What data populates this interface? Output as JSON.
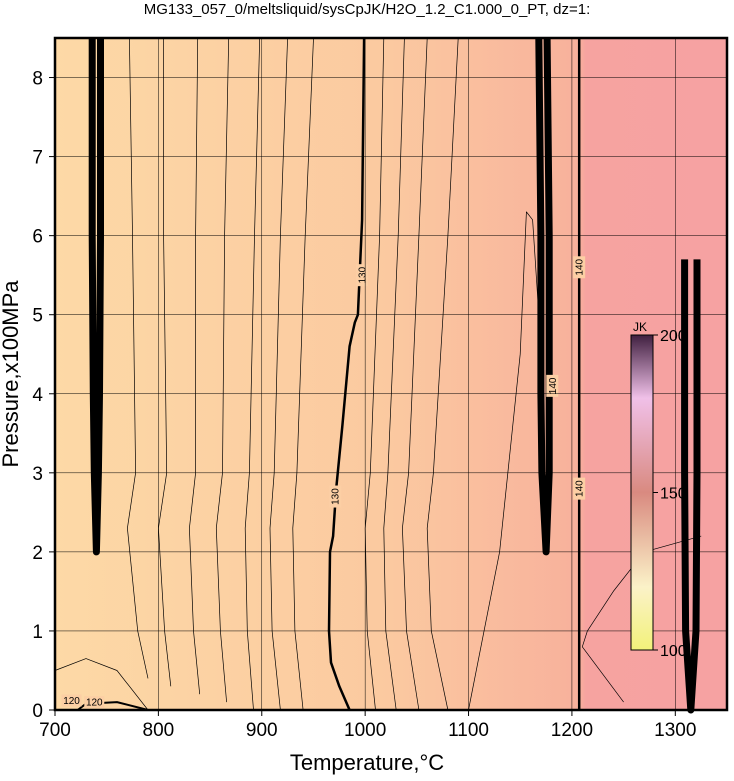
{
  "chart_data": {
    "type": "contour",
    "title": "MG133_057_0/meltsliquid/sysCpJK/H2O_1.2_C1.000_0_PT, dz=1:",
    "x_label": "Temperature,°C",
    "y_label": "Pressure,x100MPa",
    "xlim": [
      700,
      1350
    ],
    "ylim": [
      0,
      8.5
    ],
    "xticks": [
      700,
      800,
      900,
      1000,
      1100,
      1200,
      1300
    ],
    "yticks": [
      0,
      1,
      2,
      3,
      4,
      5,
      6,
      7,
      8
    ],
    "grid": true,
    "contours": [
      {
        "level": 130,
        "x": [
          999,
          997,
          995,
          993,
          990,
          985,
          978,
          972,
          969,
          966,
          965,
          967,
          975,
          985
        ],
        "y": [
          8.5,
          6.2,
          5.6,
          5.0,
          4.9,
          4.6,
          3.6,
          2.8,
          2.2,
          2.0,
          1.0,
          0.6,
          0.3,
          0
        ]
      },
      {
        "level": 140,
        "x": [
          1207,
          1207
        ],
        "y": [
          8.5,
          0
        ]
      },
      {
        "level": 120,
        "x": [
          722,
          730,
          760,
          790
        ],
        "y": [
          0,
          0.08,
          0.1,
          0
        ]
      }
    ],
    "contour_labels": [
      {
        "level": 130,
        "x": 997,
        "y": 5.5
      },
      {
        "level": 130,
        "x": 971,
        "y": 2.7
      },
      {
        "level": 140,
        "x": 1207,
        "y": 5.6
      },
      {
        "level": 140,
        "x": 1207,
        "y": 2.8
      },
      {
        "level": 140,
        "x": 1181,
        "y": 4.1
      },
      {
        "level": 120,
        "x": 716,
        "y": 0.12
      },
      {
        "level": 120,
        "x": 738,
        "y": 0.1
      }
    ],
    "boundaries": [
      {
        "x": [
          736,
          736,
          737,
          738,
          740,
          742,
          743,
          744,
          744
        ],
        "y": [
          8.5,
          6,
          4,
          3,
          2,
          3,
          4,
          6,
          8.5
        ]
      },
      {
        "x": [
          1168,
          1170,
          1170,
          1171,
          1175,
          1178,
          1178,
          1178,
          1176
        ],
        "y": [
          8.5,
          6,
          4,
          3,
          2,
          3,
          4,
          6,
          8.5
        ]
      },
      {
        "x": [
          1309,
          1309,
          1310,
          1315,
          1320,
          1321,
          1321
        ],
        "y": [
          5.7,
          3,
          1,
          0,
          1,
          3,
          5.7
        ]
      }
    ],
    "thin_contours": [
      {
        "x": [
          772,
          775,
          778,
          770,
          780,
          790
        ],
        "y": [
          8.5,
          6,
          3,
          2.3,
          1,
          0.4
        ]
      },
      {
        "x": [
          805,
          805,
          808,
          800,
          806,
          812
        ],
        "y": [
          8.5,
          6,
          3,
          2.3,
          1,
          0.3
        ]
      },
      {
        "x": [
          838,
          836,
          836,
          830,
          834,
          840
        ],
        "y": [
          8.5,
          6,
          3,
          2.3,
          1,
          0.2
        ]
      },
      {
        "x": [
          868,
          864,
          862,
          856,
          860,
          866
        ],
        "y": [
          8.5,
          6,
          3,
          2.3,
          1,
          0.1
        ]
      },
      {
        "x": [
          898,
          893,
          888,
          884,
          886,
          892
        ],
        "y": [
          8.5,
          6,
          3,
          2.3,
          1,
          0
        ]
      },
      {
        "x": [
          925,
          918,
          912,
          908,
          910,
          918
        ],
        "y": [
          8.5,
          6,
          3,
          2.3,
          1,
          0
        ]
      },
      {
        "x": [
          950,
          942,
          934,
          930,
          932,
          940
        ],
        "y": [
          8.5,
          6,
          3,
          2.3,
          1,
          0
        ]
      },
      {
        "x": [
          1018,
          1014,
          1005,
          1000,
          1002,
          1010
        ],
        "y": [
          8.5,
          6,
          3,
          2.3,
          1,
          0
        ]
      },
      {
        "x": [
          1038,
          1032,
          1022,
          1018,
          1020,
          1030
        ],
        "y": [
          8.5,
          6,
          3,
          2.3,
          1,
          0
        ]
      },
      {
        "x": [
          1060,
          1052,
          1042,
          1036,
          1040,
          1052
        ],
        "y": [
          8.5,
          6,
          3,
          2.3,
          1,
          0
        ]
      },
      {
        "x": [
          1090,
          1080,
          1066,
          1060,
          1064,
          1080
        ],
        "y": [
          8.5,
          6,
          3,
          2.3,
          1,
          0
        ]
      },
      {
        "x": [
          1100,
          1130,
          1150,
          1156,
          1162,
          1168
        ],
        "y": [
          0,
          2,
          4.5,
          6.3,
          6.2,
          5
        ]
      },
      {
        "x": [
          1250,
          1210,
          1215,
          1240,
          1270,
          1325
        ],
        "y": [
          0.1,
          0.8,
          1.0,
          1.5,
          2.0,
          2.2
        ]
      },
      {
        "x": [
          700,
          730,
          760,
          790
        ],
        "y": [
          0.5,
          0.65,
          0.5,
          0
        ]
      }
    ],
    "colorbar": {
      "label": "JK",
      "lim": [
        100,
        200
      ],
      "ticks": [
        100,
        150,
        200
      ]
    }
  }
}
